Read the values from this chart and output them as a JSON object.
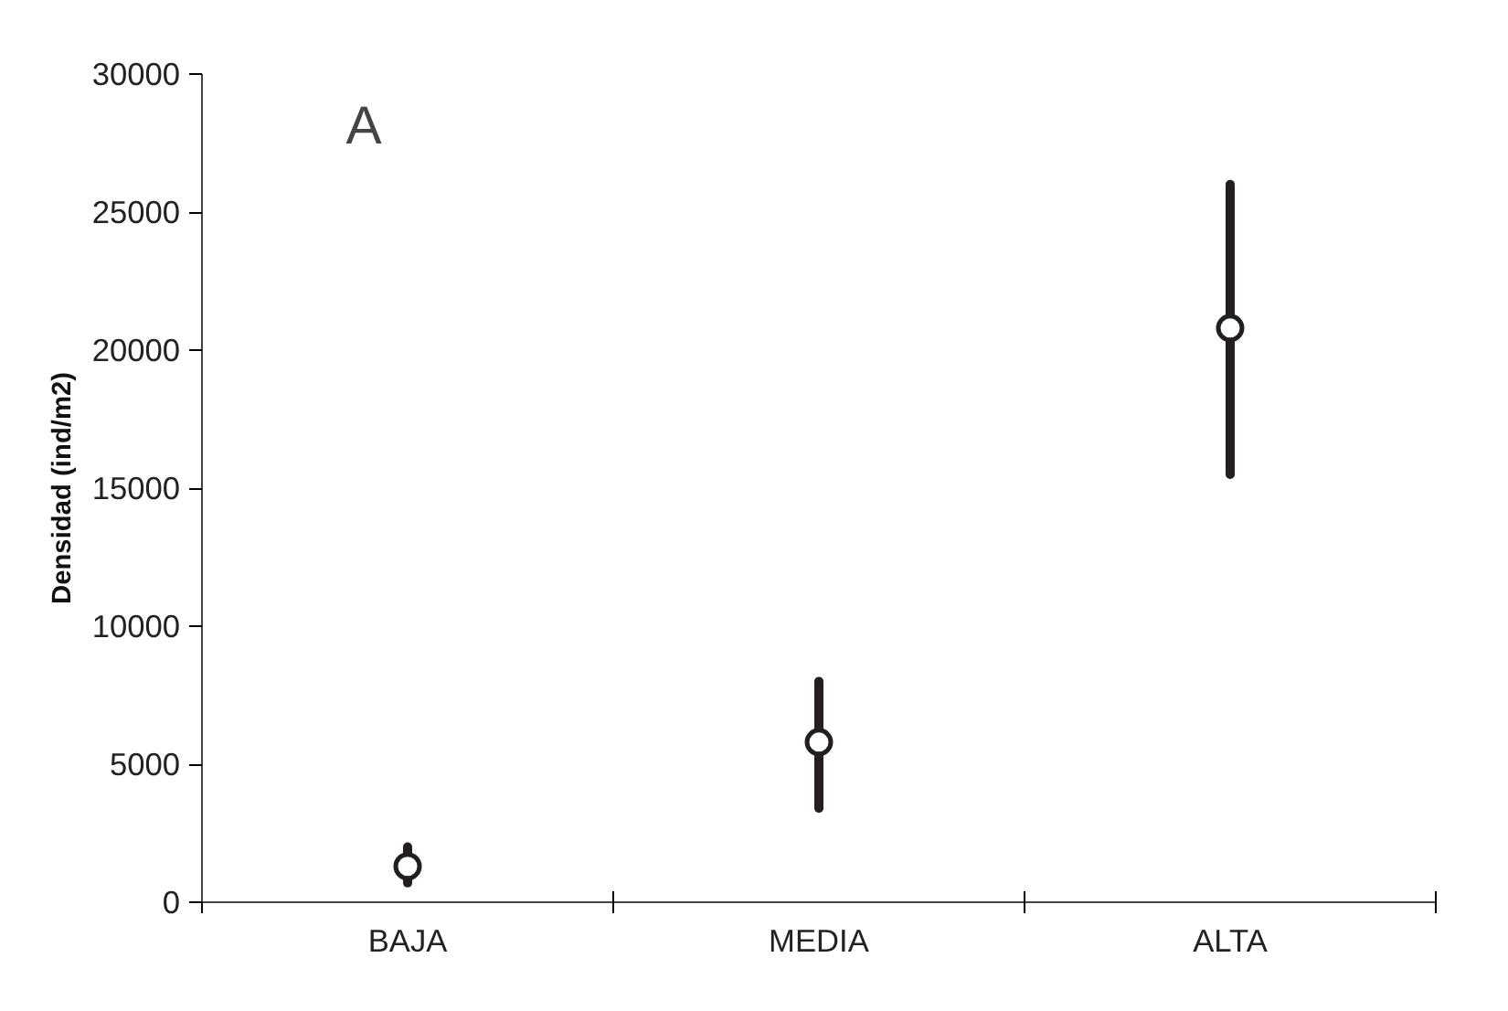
{
  "chart_data": {
    "type": "scatter",
    "ylabel": "Densidad (ind/m2)",
    "categories": [
      "BAJA",
      "MEDIA",
      "ALTA"
    ],
    "values": [
      1300,
      5800,
      20800
    ],
    "errors": [
      [
        700,
        2000
      ],
      [
        3400,
        8000
      ],
      [
        15500,
        26000
      ]
    ],
    "color": "#231f20",
    "marker": "circle",
    "ylim": [
      0,
      30000
    ],
    "yticks": [
      0,
      5000,
      10000,
      15000,
      20000,
      25000,
      30000
    ],
    "grid": false,
    "annotations": [
      "A"
    ]
  }
}
